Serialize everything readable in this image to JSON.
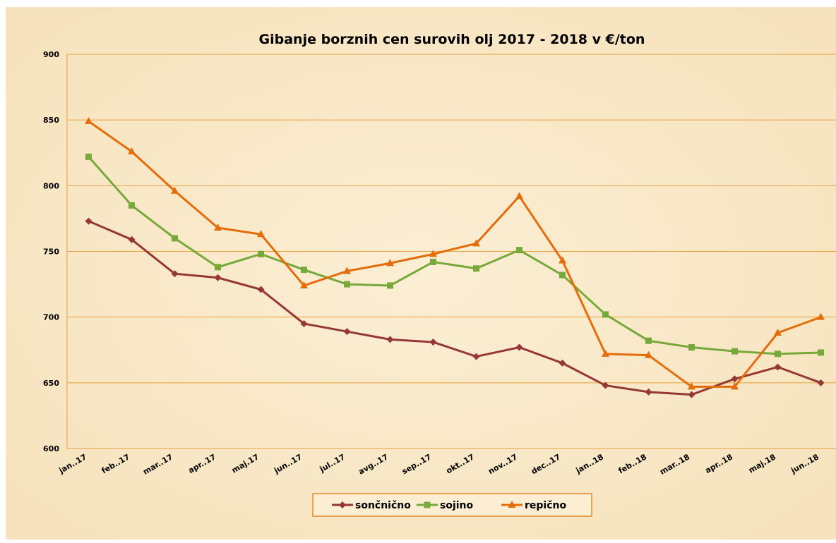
{
  "chart_data": {
    "type": "line",
    "title": "Gibanje  borznih  cen  surovih  olj  2017 - 2018  v  €/ton",
    "categories": [
      "jan..17",
      "feb..17",
      "mar..17",
      "apr..17",
      "maj.17",
      "jun..17",
      "jul..17",
      "avg..17",
      "sep..17",
      "okt..17",
      "nov..17",
      "dec..17",
      "jan..18",
      "feb..18",
      "mar..18",
      "apr..18",
      "maj.18",
      "jun..18"
    ],
    "series": [
      {
        "name": "sončnično",
        "color": "#953735",
        "marker": "diamond",
        "values": [
          773,
          759,
          733,
          730,
          721,
          695,
          689,
          683,
          681,
          670,
          677,
          665,
          648,
          643,
          641,
          653,
          662,
          650
        ]
      },
      {
        "name": "sojino",
        "color": "#77a83a",
        "marker": "square",
        "values": [
          822,
          785,
          760,
          738,
          748,
          736,
          725,
          724,
          742,
          737,
          751,
          732,
          702,
          682,
          677,
          674,
          672,
          673
        ]
      },
      {
        "name": "repično",
        "color": "#e46c0a",
        "marker": "triangle",
        "values": [
          849,
          826,
          796,
          768,
          763,
          724,
          735,
          741,
          748,
          756,
          792,
          743,
          672,
          671,
          647,
          647,
          688,
          700
        ]
      }
    ],
    "ylim": [
      600,
      900
    ],
    "yticks": [
      600,
      650,
      700,
      750,
      800,
      850,
      900
    ],
    "grid": true,
    "legend": "bottom"
  }
}
